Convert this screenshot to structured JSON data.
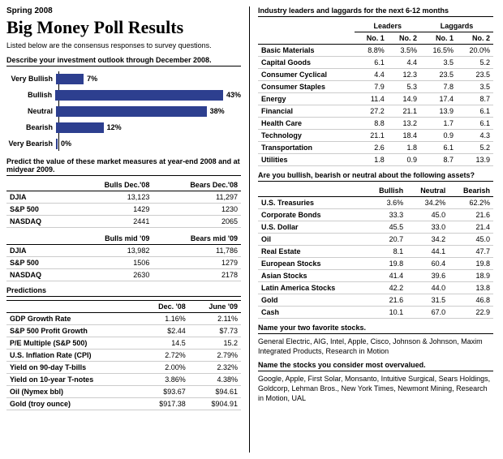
{
  "header": {
    "date": "Spring 2008",
    "title": "Big Money Poll Results",
    "subtitle": "Listed below are the consensus responses to survey questions."
  },
  "outlook": {
    "heading": "Describe your investment outlook through December 2008.",
    "max_pct": 43,
    "bar_color": "#2d3f8f",
    "rows": [
      {
        "label": "Very Bullish",
        "pct": 7
      },
      {
        "label": "Bullish",
        "pct": 43
      },
      {
        "label": "Neutral",
        "pct": 38
      },
      {
        "label": "Bearish",
        "pct": 12
      },
      {
        "label": "Very Bearish",
        "pct": 0
      }
    ]
  },
  "measures": {
    "heading": "Predict the value of these market measures at year-end 2008 and at midyear 2009.",
    "group1": {
      "cols": [
        "Bulls Dec.'08",
        "Bears Dec.'08"
      ],
      "rows": [
        [
          "DJIA",
          "13,123",
          "11,297"
        ],
        [
          "S&P 500",
          "1429",
          "1230"
        ],
        [
          "NASDAQ",
          "2441",
          "2065"
        ]
      ]
    },
    "group2": {
      "cols": [
        "Bulls mid '09",
        "Bears mid '09"
      ],
      "rows": [
        [
          "DJIA",
          "13,982",
          "11,786"
        ],
        [
          "S&P 500",
          "1506",
          "1279"
        ],
        [
          "NASDAQ",
          "2630",
          "2178"
        ]
      ]
    }
  },
  "predictions": {
    "heading": "Predictions",
    "cols": [
      "Dec. '08",
      "June '09"
    ],
    "rows": [
      [
        "GDP Growth Rate",
        "1.16%",
        "2.11%"
      ],
      [
        "S&P 500 Profit Growth",
        "$2.44",
        "$7.73"
      ],
      [
        "P/E Multiple (S&P 500)",
        "14.5",
        "15.2"
      ],
      [
        "U.S. Inflation Rate (CPI)",
        "2.72%",
        "2.79%"
      ],
      [
        "Yield on 90-day T-bills",
        "2.00%",
        "2.32%"
      ],
      [
        "Yield on 10-year T-notes",
        "3.86%",
        "4.38%"
      ],
      [
        "Oil (Nymex bbl)",
        "$93.67",
        "$94.61"
      ],
      [
        "Gold (troy ounce)",
        "$917.38",
        "$904.91"
      ]
    ]
  },
  "industry": {
    "heading": "Industry leaders and laggards for the next 6-12 months",
    "super": {
      "leaders": "Leaders",
      "laggards": "Laggards"
    },
    "cols": [
      "No. 1",
      "No. 2",
      "No. 1",
      "No. 2"
    ],
    "rows": [
      [
        "Basic Materials",
        "8.8%",
        "3.5%",
        "16.5%",
        "20.0%"
      ],
      [
        "Capital Goods",
        "6.1",
        "4.4",
        "3.5",
        "5.2"
      ],
      [
        "Consumer Cyclical",
        "4.4",
        "12.3",
        "23.5",
        "23.5"
      ],
      [
        "Consumer Staples",
        "7.9",
        "5.3",
        "7.8",
        "3.5"
      ],
      [
        "Energy",
        "11.4",
        "14.9",
        "17.4",
        "8.7"
      ],
      [
        "Financial",
        "27.2",
        "21.1",
        "13.9",
        "6.1"
      ],
      [
        "Health Care",
        "8.8",
        "13.2",
        "1.7",
        "6.1"
      ],
      [
        "Technology",
        "21.1",
        "18.4",
        "0.9",
        "4.3"
      ],
      [
        "Transportation",
        "2.6",
        "1.8",
        "6.1",
        "5.2"
      ],
      [
        "Utilities",
        "1.8",
        "0.9",
        "8.7",
        "13.9"
      ]
    ]
  },
  "assets": {
    "heading": "Are you bullish, bearish or neutral about the following assets?",
    "cols": [
      "Bullish",
      "Neutral",
      "Bearish"
    ],
    "rows": [
      [
        "U.S. Treasuries",
        "3.6%",
        "34.2%",
        "62.2%"
      ],
      [
        "Corporate Bonds",
        "33.3",
        "45.0",
        "21.6"
      ],
      [
        "U.S. Dollar",
        "45.5",
        "33.0",
        "21.4"
      ],
      [
        "Oil",
        "20.7",
        "34.2",
        "45.0"
      ],
      [
        "Real Estate",
        "8.1",
        "44.1",
        "47.7"
      ],
      [
        "European Stocks",
        "19.8",
        "60.4",
        "19.8"
      ],
      [
        "Asian Stocks",
        "41.4",
        "39.6",
        "18.9"
      ],
      [
        "Latin America Stocks",
        "42.2",
        "44.0",
        "13.8"
      ],
      [
        "Gold",
        "21.6",
        "31.5",
        "46.8"
      ],
      [
        "Cash",
        "10.1",
        "67.0",
        "22.9"
      ]
    ]
  },
  "favorites": {
    "heading": "Name your two favorite stocks.",
    "answer": "General Electric, AIG, Intel, Apple, Cisco, Johnson & Johnson, Maxim Integrated Products, Research in Motion"
  },
  "overvalued": {
    "heading": "Name the stocks you consider most overvalued.",
    "answer": "Google, Apple, First Solar, Monsanto, Intuitive Surgical, Sears Holdings, Goldcorp, Lehman Bros., New York Times, Newmont Mining, Research in Motion, UAL"
  }
}
